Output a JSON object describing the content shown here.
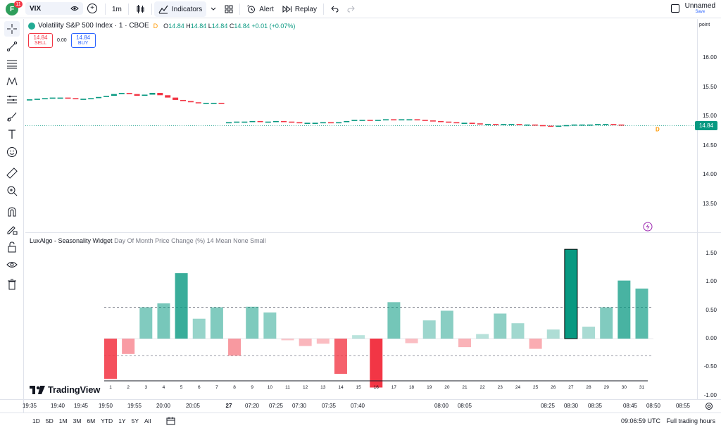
{
  "header": {
    "avatar_letter": "F",
    "avatar_badge": "11",
    "symbol": "VIX",
    "interval": "1m",
    "indicators_label": "Indicators",
    "alert_label": "Alert",
    "replay_label": "Replay",
    "layout_name": "Unnamed",
    "layout_save": "Save"
  },
  "legend": {
    "title": "Volatility S&P 500 Index · 1 · CBOE",
    "market_status": "D",
    "open_label": "O",
    "open": "14.84",
    "high_label": "H",
    "high": "14.84",
    "low_label": "L",
    "low": "14.84",
    "close_label": "C",
    "close": "14.84",
    "change": "+0.01 (+0.07%)"
  },
  "trade": {
    "sell_price": "14.84",
    "sell_label": "SELL",
    "spread": "0.00",
    "buy_price": "14.84",
    "buy_label": "BUY"
  },
  "indicator": {
    "name": "LuxAlgo - Seasonality Widget",
    "args": "Day Of Month Price Change (%) 14 Mean None Small"
  },
  "price_axis": {
    "mode_label": "point",
    "main_ticks": [
      "16.00",
      "15.50",
      "15.00",
      "14.50",
      "14.00",
      "13.50"
    ],
    "last_price": "14.84",
    "ind_ticks": [
      "1.50",
      "1.00",
      "0.50",
      "0.00",
      "-0.50",
      "-1.00"
    ]
  },
  "time_axis": {
    "labels": [
      "19:35",
      "19:40",
      "19:45",
      "19:50",
      "19:55",
      "20:00",
      "20:05",
      "27",
      "07:20",
      "07:25",
      "07:30",
      "07:35",
      "07:40",
      "08:00",
      "08:05",
      "08:25",
      "08:30",
      "08:35",
      "08:45",
      "08:50",
      "08:55"
    ]
  },
  "bottom": {
    "ranges": [
      "1D",
      "5D",
      "1M",
      "3M",
      "6M",
      "YTD",
      "1Y",
      "5Y",
      "All"
    ],
    "clock": "09:06:59 UTC",
    "session": "Full trading hours"
  },
  "logo_text": "TradingView",
  "colors": {
    "up": "#089981",
    "down": "#f23645",
    "accent": "#2962ff"
  },
  "chart_data": {
    "type": "bar",
    "title": "LuxAlgo - Seasonality Widget",
    "categories": [
      "1",
      "2",
      "3",
      "4",
      "5",
      "6",
      "7",
      "8",
      "9",
      "10",
      "11",
      "12",
      "13",
      "14",
      "15",
      "16",
      "17",
      "18",
      "19",
      "20",
      "21",
      "22",
      "23",
      "24",
      "25",
      "26",
      "27",
      "28",
      "29",
      "30",
      "31"
    ],
    "values": [
      -0.71,
      -0.27,
      0.55,
      0.62,
      1.15,
      0.35,
      0.55,
      -0.3,
      0.56,
      0.46,
      -0.03,
      -0.13,
      -0.09,
      -0.62,
      0.06,
      -0.86,
      0.64,
      -0.08,
      0.32,
      0.49,
      -0.15,
      0.08,
      0.44,
      0.27,
      -0.18,
      0.16,
      1.57,
      0.21,
      0.55,
      1.02,
      0.88
    ],
    "mean_upper": 0.55,
    "mean_lower": -0.3,
    "ylim": [
      -1.0,
      1.75
    ],
    "candles": [
      {
        "o": 15.28,
        "c": 15.28
      },
      {
        "o": 15.28,
        "c": 15.29
      },
      {
        "o": 15.29,
        "c": 15.3
      },
      {
        "o": 15.3,
        "c": 15.31
      },
      {
        "o": 15.31,
        "c": 15.31
      },
      {
        "o": 15.31,
        "c": 15.3
      },
      {
        "o": 15.3,
        "c": 15.29
      },
      {
        "o": 15.29,
        "c": 15.29
      },
      {
        "o": 15.29,
        "c": 15.3
      },
      {
        "o": 15.3,
        "c": 15.32
      },
      {
        "o": 15.32,
        "c": 15.34
      },
      {
        "o": 15.34,
        "c": 15.37
      },
      {
        "o": 15.37,
        "c": 15.39
      },
      {
        "o": 15.39,
        "c": 15.37
      },
      {
        "o": 15.37,
        "c": 15.34
      },
      {
        "o": 15.34,
        "c": 15.36
      },
      {
        "o": 15.36,
        "c": 15.39
      },
      {
        "o": 15.39,
        "c": 15.35
      },
      {
        "o": 15.35,
        "c": 15.31
      },
      {
        "o": 15.31,
        "c": 15.27
      },
      {
        "o": 15.27,
        "c": 15.25
      },
      {
        "o": 15.25,
        "c": 15.23
      },
      {
        "o": 15.23,
        "c": 15.22
      },
      {
        "o": 15.22,
        "c": 15.22
      },
      {
        "o": 15.22,
        "c": 15.22
      },
      {
        "o": 15.22,
        "c": 15.21
      },
      {
        "o": 14.89,
        "c": 14.89
      },
      {
        "o": 14.89,
        "c": 14.9
      },
      {
        "o": 14.9,
        "c": 14.9
      },
      {
        "o": 14.9,
        "c": 14.91
      },
      {
        "o": 14.91,
        "c": 14.9
      },
      {
        "o": 14.9,
        "c": 14.9
      },
      {
        "o": 14.9,
        "c": 14.91
      },
      {
        "o": 14.91,
        "c": 14.9
      },
      {
        "o": 14.9,
        "c": 14.89
      },
      {
        "o": 14.89,
        "c": 14.88
      },
      {
        "o": 14.88,
        "c": 14.88
      },
      {
        "o": 14.88,
        "c": 14.88
      },
      {
        "o": 14.88,
        "c": 14.89
      },
      {
        "o": 14.89,
        "c": 14.88
      },
      {
        "o": 14.88,
        "c": 14.89
      },
      {
        "o": 14.89,
        "c": 14.91
      },
      {
        "o": 14.91,
        "c": 14.93
      },
      {
        "o": 14.93,
        "c": 14.93
      },
      {
        "o": 14.93,
        "c": 14.92
      },
      {
        "o": 14.92,
        "c": 14.93
      },
      {
        "o": 14.93,
        "c": 14.94
      },
      {
        "o": 14.94,
        "c": 14.93
      },
      {
        "o": 14.93,
        "c": 14.94
      },
      {
        "o": 14.94,
        "c": 14.94
      },
      {
        "o": 14.94,
        "c": 14.93
      },
      {
        "o": 14.93,
        "c": 14.92
      },
      {
        "o": 14.92,
        "c": 14.91
      },
      {
        "o": 14.91,
        "c": 14.9
      },
      {
        "o": 14.9,
        "c": 14.89
      },
      {
        "o": 14.89,
        "c": 14.88
      },
      {
        "o": 14.88,
        "c": 14.88
      },
      {
        "o": 14.88,
        "c": 14.87
      },
      {
        "o": 14.87,
        "c": 14.86
      },
      {
        "o": 14.86,
        "c": 14.86
      },
      {
        "o": 14.86,
        "c": 14.85
      },
      {
        "o": 14.85,
        "c": 14.86
      },
      {
        "o": 14.86,
        "c": 14.86
      },
      {
        "o": 14.86,
        "c": 14.85
      },
      {
        "o": 14.85,
        "c": 14.85
      },
      {
        "o": 14.85,
        "c": 14.84
      },
      {
        "o": 14.84,
        "c": 14.83
      },
      {
        "o": 14.83,
        "c": 14.82
      },
      {
        "o": 14.82,
        "c": 14.83
      },
      {
        "o": 14.83,
        "c": 14.84
      },
      {
        "o": 14.84,
        "c": 14.85
      },
      {
        "o": 14.85,
        "c": 14.85
      },
      {
        "o": 14.85,
        "c": 14.85
      },
      {
        "o": 14.85,
        "c": 14.86
      },
      {
        "o": 14.86,
        "c": 14.86
      },
      {
        "o": 14.86,
        "c": 14.85
      },
      {
        "o": 14.85,
        "c": 14.84
      }
    ]
  }
}
